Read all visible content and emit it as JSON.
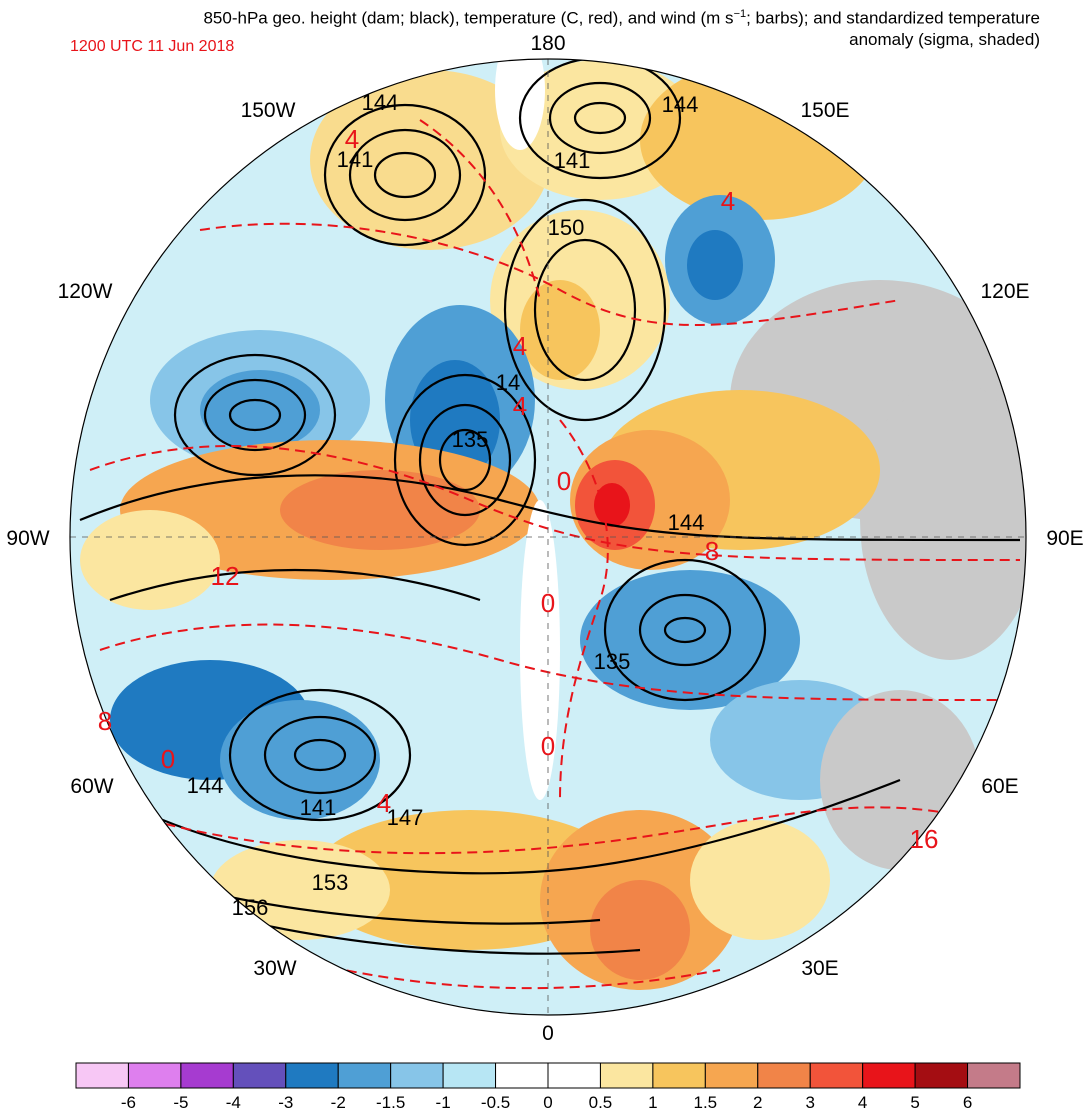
{
  "header": {
    "title_line1": "850-hPa geo. height (dam; black), temperature (C, red), and wind (m s",
    "title_sup": "−1",
    "title_line1_end": "; barbs); and standardized temperature",
    "title_line2": "anomaly (sigma, shaded)",
    "valid_time": "1200 UTC 11 Jun 2018"
  },
  "longitude_labels": [
    "180",
    "150E",
    "120E",
    "90E",
    "60E",
    "30E",
    "0",
    "30W",
    "60W",
    "90W",
    "120W",
    "150W"
  ],
  "height_contour_labels": [
    "144",
    "141",
    "144",
    "141",
    "150",
    "14",
    "135",
    "144",
    "135",
    "144",
    "141",
    "147",
    "153",
    "156"
  ],
  "temperature_labels": [
    "4",
    "4",
    "0",
    "4",
    "12",
    "8",
    "8",
    "0",
    "0",
    "4",
    "16",
    "0",
    "4"
  ],
  "colorbar": {
    "colors": [
      "#f7c7f5",
      "#de7fee",
      "#a63bd0",
      "#6450bb",
      "#1f7ac1",
      "#4f9fd5",
      "#87c5e8",
      "#b7e6f4",
      "#ffffff",
      "#ffffff",
      "#fbe6a0",
      "#f7c55d",
      "#f6a650",
      "#f18448",
      "#f2543a",
      "#e8141a",
      "#a40d12",
      "#c47b89"
    ],
    "tick_labels": [
      "-6",
      "-5",
      "-4",
      "-3",
      "-2",
      "-1.5",
      "-1",
      "-0.5",
      "0",
      "0.5",
      "1",
      "1.5",
      "2",
      "3",
      "4",
      "5",
      "6"
    ]
  },
  "legend_colors": {
    "height_contours": "#000000",
    "temperature_contours": "#e8141a",
    "land_gray": "#c9c9c9"
  }
}
